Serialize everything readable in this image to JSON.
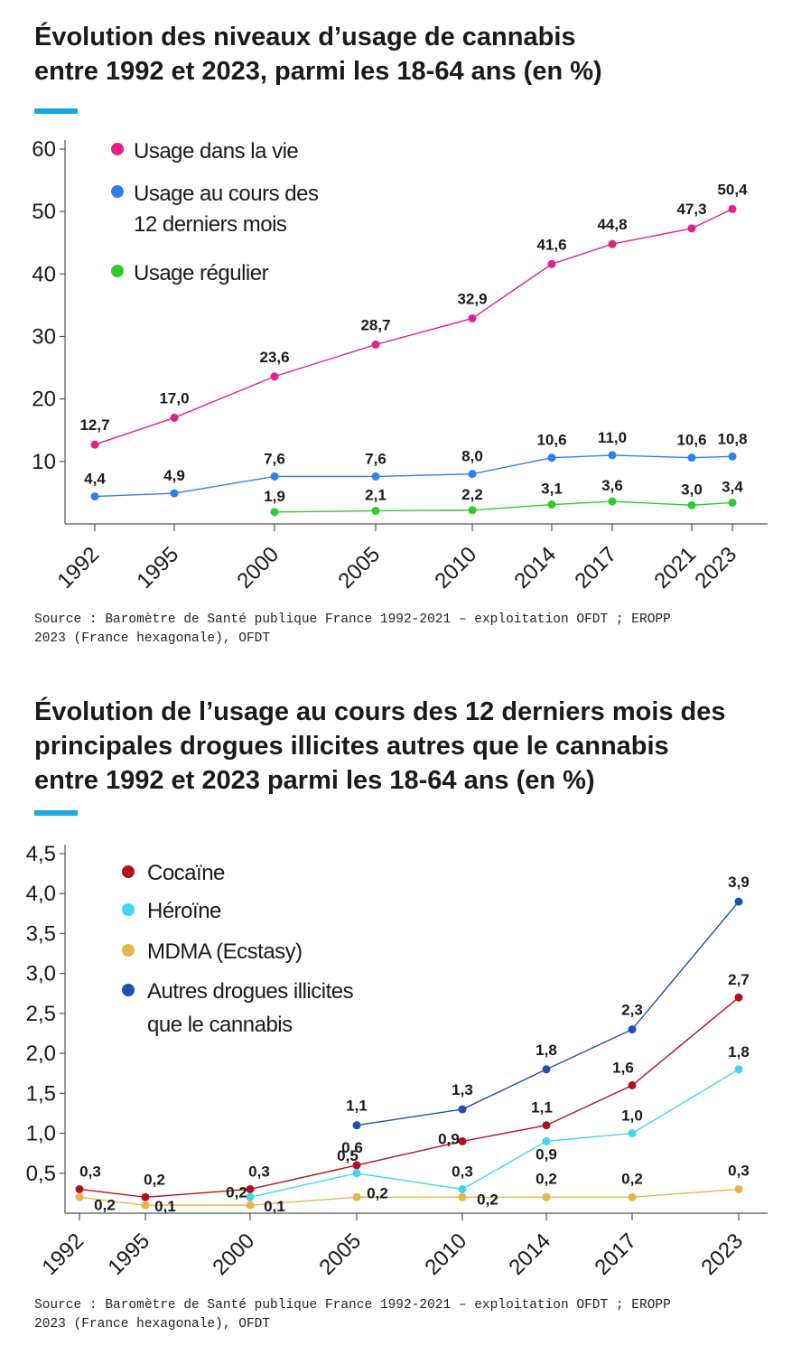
{
  "colors": {
    "accent": "#1aa7e0",
    "axis": "#555555",
    "text": "#1a1a1a"
  },
  "chart_data": [
    {
      "type": "line",
      "title": [
        "Évolution des niveaux d’usage de cannabis",
        "entre 1992 et 2023, parmi les 18-64 ans (en %)"
      ],
      "source": [
        "Source : Baromètre de Santé publique France 1992-2021 – exploitation OFDT ; EROPP",
        "2023 (France hexagonale), OFDT"
      ],
      "xlabel": "",
      "ylabel": "",
      "ylim": [
        0,
        60
      ],
      "y_ticks": [
        10,
        20,
        30,
        40,
        50,
        60
      ],
      "y_tick_labels": [
        "10",
        "20",
        "30",
        "40",
        "50",
        "60"
      ],
      "x_ticks": [
        1992,
        1995,
        2000,
        2005,
        2010,
        2014,
        2017,
        2021,
        2023
      ],
      "x_tick_labels": [
        "1992",
        "1995",
        "2000",
        "2005",
        "2010",
        "2014",
        "2017",
        "2021",
        "2023"
      ],
      "grid": false,
      "legend_position": "top-left",
      "series": [
        {
          "name": "Usage dans la vie",
          "legend": [
            "Usage dans la vie"
          ],
          "color": "#e0218a",
          "x": [
            1992,
            1995,
            2000,
            2005,
            2010,
            2014,
            2017,
            2021,
            2023
          ],
          "values": [
            12.7,
            17.0,
            23.6,
            28.7,
            32.9,
            41.6,
            44.8,
            47.3,
            50.4
          ],
          "labels": [
            "12,7",
            "17,0",
            "23,6",
            "28,7",
            "32,9",
            "41,6",
            "44,8",
            "47,3",
            "50,4"
          ]
        },
        {
          "name": "Usage au cours des 12 derniers mois",
          "legend": [
            "Usage au cours des",
            "12 derniers mois"
          ],
          "color": "#2f7ff0",
          "x": [
            1992,
            1995,
            2000,
            2005,
            2010,
            2014,
            2017,
            2021,
            2023
          ],
          "values": [
            4.4,
            4.9,
            7.6,
            7.6,
            8.0,
            10.6,
            11.0,
            10.6,
            10.8
          ],
          "labels": [
            "4,4",
            "4,9",
            "7,6",
            "7,6",
            "8,0",
            "10,6",
            "11,0",
            "10,6",
            "10,8"
          ]
        },
        {
          "name": "Usage régulier",
          "legend": [
            "Usage régulier"
          ],
          "color": "#2ccc2c",
          "x": [
            2000,
            2005,
            2010,
            2014,
            2017,
            2021,
            2023
          ],
          "values": [
            1.9,
            2.1,
            2.2,
            3.1,
            3.6,
            3.0,
            3.4
          ],
          "labels": [
            "1,9",
            "2,1",
            "2,2",
            "3,1",
            "3,6",
            "3,0",
            "3,4"
          ]
        }
      ]
    },
    {
      "type": "line",
      "title": [
        "Évolution de l’usage au cours des 12 derniers mois des",
        "principales drogues illicites autres que le cannabis",
        "entre 1992 et 2023 parmi les 18-64 ans (en %)"
      ],
      "source": [
        "Source : Baromètre de Santé publique France 1992-2021 – exploitation OFDT ; EROPP",
        "2023 (France hexagonale), OFDT"
      ],
      "xlabel": "",
      "ylabel": "",
      "ylim": [
        0,
        4.5
      ],
      "y_ticks": [
        0.5,
        1.0,
        1.5,
        2.0,
        2.5,
        3.0,
        3.5,
        4.0,
        4.5
      ],
      "y_tick_labels": [
        "0,5",
        "1,0",
        "1,5",
        "2,0",
        "2,5",
        "3,0",
        "3,5",
        "4,0",
        "4,5"
      ],
      "x_ticks": [
        1992,
        1995,
        2000,
        2005,
        2010,
        2014,
        2017,
        2023
      ],
      "x_tick_labels": [
        "1992",
        "1995",
        "2000",
        "2005",
        "2010",
        "2014",
        "2017",
        "2023"
      ],
      "grid": false,
      "legend_position": "top-left",
      "series": [
        {
          "name": "Cocaïne",
          "legend": [
            "Cocaïne"
          ],
          "color": "#b3101e",
          "x": [
            1992,
            1995,
            2000,
            2005,
            2010,
            2014,
            2017,
            2023
          ],
          "values": [
            0.3,
            0.2,
            0.3,
            0.6,
            0.9,
            1.1,
            1.6,
            2.7
          ],
          "labels": [
            "0,3",
            "0,2",
            "0,3",
            "0,6",
            "0,9",
            "1,1",
            "1,6",
            "2,7"
          ]
        },
        {
          "name": "Héroïne",
          "legend": [
            "Héroïne"
          ],
          "color": "#3fd6ee",
          "x": [
            2000,
            2005,
            2010,
            2014,
            2017,
            2023
          ],
          "values": [
            0.2,
            0.5,
            0.3,
            0.9,
            1.0,
            1.8
          ],
          "labels": [
            "0,2",
            "0,5",
            "0,3",
            "0,9",
            "1,0",
            "1,8"
          ]
        },
        {
          "name": "MDMA (Ecstasy)",
          "legend": [
            "MDMA (Ecstasy)"
          ],
          "color": "#e8b54a",
          "x": [
            1992,
            1995,
            2000,
            2005,
            2010,
            2014,
            2017,
            2023
          ],
          "values": [
            0.2,
            0.1,
            0.1,
            0.2,
            0.2,
            0.2,
            0.2,
            0.3
          ],
          "labels": [
            "0,2",
            "0,1",
            "0,1",
            "0,2",
            "0,2",
            "0,2",
            "0,2",
            "0,3"
          ]
        },
        {
          "name": "Autres drogues illicites que le cannabis",
          "legend": [
            "Autres drogues illicites",
            "que le cannabis"
          ],
          "color": "#1e4fb3",
          "x": [
            2005,
            2010,
            2014,
            2017,
            2023
          ],
          "values": [
            1.1,
            1.3,
            1.8,
            2.3,
            3.9
          ],
          "labels": [
            "1,1",
            "1,3",
            "1,8",
            "2,3",
            "3,9"
          ]
        }
      ]
    }
  ]
}
